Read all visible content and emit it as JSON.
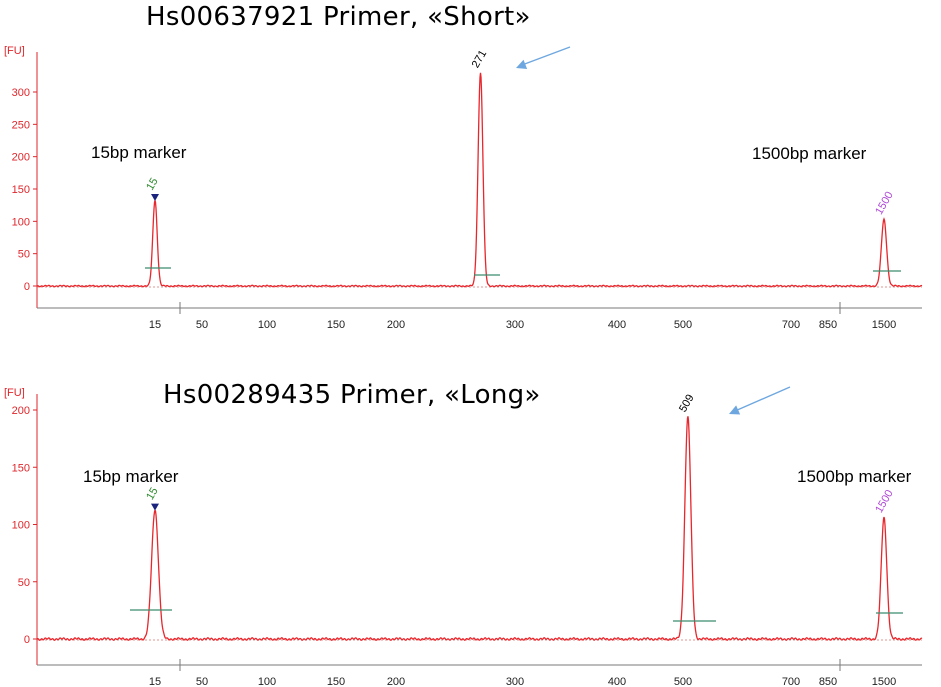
{
  "colors": {
    "trace": "#e8262c",
    "baseline": "#d87070",
    "axis": "#e0262b",
    "xaxis": "#7a7a7a",
    "peak_bar": "#3a8c6e",
    "arrow": "#6ea7e0",
    "marker_triangle": "#1a237e",
    "label_15": "#2e8b2e",
    "label_1500": "#b04ad8",
    "label_peak": "#000000"
  },
  "chart_data": [
    {
      "type": "line",
      "title": "Hs00637921 Primer, «Short»",
      "ylabel": "[FU]",
      "ylim": [
        -20,
        350
      ],
      "yticks": [
        0,
        50,
        100,
        150,
        200,
        250,
        300
      ],
      "x_ticks": [
        "15",
        "50",
        "100",
        "150",
        "200",
        "300",
        "400",
        "500",
        "700",
        "850",
        "1500"
      ],
      "annotations": [
        "15bp marker",
        "1500bp marker"
      ],
      "series": [
        {
          "peaks": [
            {
              "label": "15",
              "x": "15",
              "height": 133,
              "marker": true,
              "label_color": "label_15"
            },
            {
              "label": "271",
              "x": "271",
              "height": 330,
              "marker": false,
              "label_color": "label_peak"
            },
            {
              "label": "1500",
              "x": "1500",
              "height": 103,
              "marker": false,
              "label_color": "label_1500"
            }
          ]
        }
      ]
    },
    {
      "type": "line",
      "title": "Hs00289435 Primer, «Long»",
      "ylabel": "[FU]",
      "ylim": [
        -25,
        215
      ],
      "yticks": [
        0,
        50,
        100,
        150,
        200
      ],
      "x_ticks": [
        "15",
        "50",
        "100",
        "150",
        "200",
        "300",
        "400",
        "500",
        "700",
        "850",
        "1500"
      ],
      "annotations": [
        "15bp marker",
        "1500bp marker"
      ],
      "series": [
        {
          "peaks": [
            {
              "label": "15",
              "x": "15",
              "height": 113,
              "marker": true,
              "label_color": "label_15"
            },
            {
              "label": "509",
              "x": "509",
              "height": 194,
              "marker": false,
              "label_color": "label_peak"
            },
            {
              "label": "1500",
              "x": "1500",
              "height": 106,
              "marker": false,
              "label_color": "label_1500"
            }
          ]
        }
      ]
    }
  ]
}
